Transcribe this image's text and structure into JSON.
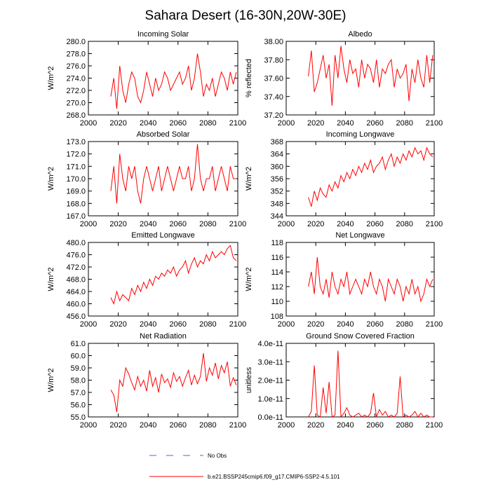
{
  "title": "Sahara Desert (16-30N,20W-30E)",
  "legend": [
    {
      "name": "No Obs",
      "color": "#6a5acd",
      "dash": true
    },
    {
      "name": "b.e21.BSSP245cmip6.f09_g17.CMIP6-SSP2-4.5.101",
      "color": "#ff0000",
      "dash": false
    }
  ],
  "chart_data": [
    {
      "type": "line",
      "title": "Incoming Solar",
      "ylabel": "W/m^2",
      "color": "#ff0000",
      "xlim": [
        2000,
        2100
      ],
      "xticks": [
        2000,
        2020,
        2040,
        2060,
        2080,
        2100
      ],
      "ylim": [
        268,
        280
      ],
      "yticks": [
        {
          "value": 268,
          "label": "268.0"
        },
        {
          "value": 270,
          "label": "270.0"
        },
        {
          "value": 272,
          "label": "272.0"
        },
        {
          "value": 274,
          "label": "274.0"
        },
        {
          "value": 276,
          "label": "276.0"
        },
        {
          "value": 278,
          "label": "278.0"
        },
        {
          "value": 280,
          "label": "280.0"
        }
      ],
      "x": [
        2015,
        2017,
        2019,
        2021,
        2023,
        2025,
        2027,
        2029,
        2031,
        2033,
        2035,
        2037,
        2039,
        2041,
        2043,
        2045,
        2047,
        2049,
        2051,
        2053,
        2055,
        2057,
        2059,
        2061,
        2063,
        2065,
        2067,
        2069,
        2071,
        2073,
        2075,
        2077,
        2079,
        2081,
        2083,
        2085,
        2087,
        2089,
        2091,
        2093,
        2095,
        2097,
        2099
      ],
      "values": [
        271,
        274,
        269,
        276,
        272,
        270,
        273,
        275,
        274,
        271,
        270,
        272,
        275,
        273,
        271,
        274,
        272,
        273,
        275,
        274,
        272,
        273,
        274,
        275,
        273,
        274,
        276,
        272,
        274,
        278,
        275,
        271,
        273,
        272,
        274,
        271,
        273,
        275,
        274,
        272,
        275,
        273,
        275
      ]
    },
    {
      "type": "line",
      "title": "Albedo",
      "ylabel": "% reflected",
      "color": "#ff0000",
      "xlim": [
        2000,
        2100
      ],
      "xticks": [
        2000,
        2020,
        2040,
        2060,
        2080,
        2100
      ],
      "ylim": [
        37.2,
        38.0
      ],
      "yticks": [
        {
          "value": 37.2,
          "label": "37.20"
        },
        {
          "value": 37.4,
          "label": "37.40"
        },
        {
          "value": 37.6,
          "label": "37.60"
        },
        {
          "value": 37.8,
          "label": "37.80"
        },
        {
          "value": 38.0,
          "label": "38.00"
        }
      ],
      "x": [
        2015,
        2017,
        2019,
        2021,
        2023,
        2025,
        2027,
        2029,
        2031,
        2033,
        2035,
        2037,
        2039,
        2041,
        2043,
        2045,
        2047,
        2049,
        2051,
        2053,
        2055,
        2057,
        2059,
        2061,
        2063,
        2065,
        2067,
        2069,
        2071,
        2073,
        2075,
        2077,
        2079,
        2081,
        2083,
        2085,
        2087,
        2089,
        2091,
        2093,
        2095,
        2097,
        2099
      ],
      "values": [
        37.62,
        37.9,
        37.45,
        37.55,
        37.7,
        37.85,
        37.6,
        37.75,
        37.3,
        37.85,
        37.6,
        37.95,
        37.7,
        37.55,
        37.8,
        37.65,
        37.7,
        37.5,
        37.8,
        37.6,
        37.75,
        37.7,
        37.55,
        37.8,
        37.5,
        37.7,
        37.65,
        37.75,
        37.8,
        37.5,
        37.7,
        37.6,
        37.65,
        37.75,
        37.35,
        37.7,
        37.55,
        37.8,
        37.6,
        37.5,
        37.85,
        37.55,
        37.85
      ]
    },
    {
      "type": "line",
      "title": "Absorbed Solar",
      "ylabel": "W/m^2",
      "color": "#ff0000",
      "xlim": [
        2000,
        2100
      ],
      "xticks": [
        2000,
        2020,
        2040,
        2060,
        2080,
        2100
      ],
      "ylim": [
        167,
        173
      ],
      "yticks": [
        {
          "value": 167,
          "label": "167.0"
        },
        {
          "value": 168,
          "label": "168.0"
        },
        {
          "value": 169,
          "label": "169.0"
        },
        {
          "value": 170,
          "label": "170.0"
        },
        {
          "value": 171,
          "label": "171.0"
        },
        {
          "value": 172,
          "label": "172.0"
        },
        {
          "value": 173,
          "label": "173.0"
        }
      ],
      "x": [
        2015,
        2017,
        2019,
        2021,
        2023,
        2025,
        2027,
        2029,
        2031,
        2033,
        2035,
        2037,
        2039,
        2041,
        2043,
        2045,
        2047,
        2049,
        2051,
        2053,
        2055,
        2057,
        2059,
        2061,
        2063,
        2065,
        2067,
        2069,
        2071,
        2073,
        2075,
        2077,
        2079,
        2081,
        2083,
        2085,
        2087,
        2089,
        2091,
        2093,
        2095,
        2097,
        2099
      ],
      "values": [
        169,
        171,
        168,
        172,
        170,
        169,
        171,
        170,
        171,
        169,
        168,
        170,
        171,
        170,
        169,
        170,
        171,
        169,
        170,
        171,
        170,
        169,
        170,
        171,
        170,
        170,
        171,
        169,
        170,
        172.8,
        170,
        169,
        170,
        170,
        171,
        169,
        170,
        171,
        170,
        169,
        171,
        170,
        170
      ]
    },
    {
      "type": "line",
      "title": "Incoming Longwave",
      "ylabel": "W/m^2",
      "color": "#ff0000",
      "xlim": [
        2000,
        2100
      ],
      "xticks": [
        2000,
        2020,
        2040,
        2060,
        2080,
        2100
      ],
      "ylim": [
        344,
        368
      ],
      "yticks": [
        344,
        348,
        352,
        356,
        360,
        364,
        368
      ],
      "x": [
        2015,
        2017,
        2019,
        2021,
        2023,
        2025,
        2027,
        2029,
        2031,
        2033,
        2035,
        2037,
        2039,
        2041,
        2043,
        2045,
        2047,
        2049,
        2051,
        2053,
        2055,
        2057,
        2059,
        2061,
        2063,
        2065,
        2067,
        2069,
        2071,
        2073,
        2075,
        2077,
        2079,
        2081,
        2083,
        2085,
        2087,
        2089,
        2091,
        2093,
        2095,
        2097,
        2099
      ],
      "values": [
        350,
        347,
        352,
        349,
        353,
        351,
        350,
        354,
        352,
        355,
        353,
        357,
        355,
        358,
        356,
        359,
        357,
        360,
        358,
        361,
        359,
        362,
        358,
        360,
        361,
        363,
        359,
        362,
        364,
        360,
        363,
        361,
        364,
        362,
        365,
        363,
        366,
        364,
        365,
        362,
        366,
        364,
        363
      ]
    },
    {
      "type": "line",
      "title": "Emitted Longwave",
      "ylabel": "W/m^2",
      "color": "#ff0000",
      "xlim": [
        2000,
        2100
      ],
      "xticks": [
        2000,
        2020,
        2040,
        2060,
        2080,
        2100
      ],
      "ylim": [
        456,
        480
      ],
      "yticks": [
        {
          "value": 456,
          "label": "456.0"
        },
        {
          "value": 460,
          "label": "460.0"
        },
        {
          "value": 464,
          "label": "464.0"
        },
        {
          "value": 468,
          "label": "468.0"
        },
        {
          "value": 472,
          "label": "472.0"
        },
        {
          "value": 476,
          "label": "476.0"
        },
        {
          "value": 480,
          "label": "480.0"
        }
      ],
      "x": [
        2015,
        2017,
        2019,
        2021,
        2023,
        2025,
        2027,
        2029,
        2031,
        2033,
        2035,
        2037,
        2039,
        2041,
        2043,
        2045,
        2047,
        2049,
        2051,
        2053,
        2055,
        2057,
        2059,
        2061,
        2063,
        2065,
        2067,
        2069,
        2071,
        2073,
        2075,
        2077,
        2079,
        2081,
        2083,
        2085,
        2087,
        2089,
        2091,
        2093,
        2095,
        2097,
        2099
      ],
      "values": [
        462,
        460,
        464,
        461,
        463,
        462,
        461,
        465,
        463,
        466,
        464,
        467,
        465,
        468,
        466,
        469,
        468,
        470,
        469,
        471,
        470,
        472,
        469,
        471,
        472,
        474,
        470,
        473,
        475,
        472,
        474,
        473,
        476,
        474,
        477,
        475,
        476,
        477,
        476,
        478,
        479,
        475,
        474
      ]
    },
    {
      "type": "line",
      "title": "Net Longwave",
      "ylabel": "W/m^2",
      "color": "#ff0000",
      "xlim": [
        2000,
        2100
      ],
      "xticks": [
        2000,
        2020,
        2040,
        2060,
        2080,
        2100
      ],
      "ylim": [
        108,
        118
      ],
      "yticks": [
        108,
        110,
        112,
        114,
        116,
        118
      ],
      "x": [
        2015,
        2017,
        2019,
        2021,
        2023,
        2025,
        2027,
        2029,
        2031,
        2033,
        2035,
        2037,
        2039,
        2041,
        2043,
        2045,
        2047,
        2049,
        2051,
        2053,
        2055,
        2057,
        2059,
        2061,
        2063,
        2065,
        2067,
        2069,
        2071,
        2073,
        2075,
        2077,
        2079,
        2081,
        2083,
        2085,
        2087,
        2089,
        2091,
        2093,
        2095,
        2097,
        2099
      ],
      "values": [
        112,
        114,
        111,
        116,
        112,
        111,
        113,
        110.5,
        114,
        112,
        111,
        113,
        112,
        114,
        111,
        112,
        113,
        112,
        111,
        113,
        112,
        114,
        112,
        111,
        113,
        112,
        110,
        113,
        112,
        111,
        113,
        112,
        110,
        112,
        111,
        113,
        111,
        112,
        110,
        111,
        113,
        112,
        113
      ]
    },
    {
      "type": "line",
      "title": "Net Radiation",
      "ylabel": "W/m^2",
      "color": "#ff0000",
      "xlim": [
        2000,
        2100
      ],
      "xticks": [
        2000,
        2020,
        2040,
        2060,
        2080,
        2100
      ],
      "ylim": [
        55,
        61
      ],
      "yticks": [
        {
          "value": 55,
          "label": "55.0"
        },
        {
          "value": 56,
          "label": "56.0"
        },
        {
          "value": 57,
          "label": "57.0"
        },
        {
          "value": 58,
          "label": "58.0"
        },
        {
          "value": 59,
          "label": "59.0"
        },
        {
          "value": 60,
          "label": "60.0"
        },
        {
          "value": 61,
          "label": "61.0"
        }
      ],
      "x": [
        2015,
        2017,
        2019,
        2021,
        2023,
        2025,
        2027,
        2029,
        2031,
        2033,
        2035,
        2037,
        2039,
        2041,
        2043,
        2045,
        2047,
        2049,
        2051,
        2053,
        2055,
        2057,
        2059,
        2061,
        2063,
        2065,
        2067,
        2069,
        2071,
        2073,
        2075,
        2077,
        2079,
        2081,
        2083,
        2085,
        2087,
        2089,
        2091,
        2093,
        2095,
        2097,
        2099
      ],
      "values": [
        57.2,
        56.8,
        55.4,
        58,
        57.5,
        59,
        58.5,
        57.8,
        57.2,
        58.3,
        57.5,
        58,
        57.1,
        58.8,
        57.5,
        58.2,
        57,
        58.5,
        57.8,
        58.1,
        57.4,
        58.6,
        57.9,
        58.3,
        57.5,
        58.2,
        58.8,
        57.6,
        58.4,
        57.7,
        58.3,
        60.2,
        57.9,
        59,
        58.4,
        59.4,
        58.1,
        59.2,
        58.6,
        59.5,
        57.5,
        58.2,
        57.6
      ]
    },
    {
      "type": "line",
      "title": "Ground Snow Covered Fraction",
      "ylabel": "unitless",
      "color": "#ff0000",
      "xlim": [
        2000,
        2100
      ],
      "xticks": [
        2000,
        2020,
        2040,
        2060,
        2080,
        2100
      ],
      "ylim": [
        0,
        4e-11
      ],
      "yticks": [
        {
          "value": 0,
          "label": "0.0e-11"
        },
        {
          "value": 1e-11,
          "label": "1.0e-11"
        },
        {
          "value": 2e-11,
          "label": "2.0e-11"
        },
        {
          "value": 3e-11,
          "label": "3.0e-11"
        },
        {
          "value": 4e-11,
          "label": "4.0e-11"
        }
      ],
      "x": [
        2015,
        2017,
        2019,
        2021,
        2023,
        2025,
        2027,
        2029,
        2031,
        2033,
        2035,
        2037,
        2039,
        2041,
        2043,
        2045,
        2047,
        2049,
        2051,
        2053,
        2055,
        2057,
        2059,
        2061,
        2063,
        2065,
        2067,
        2069,
        2071,
        2073,
        2075,
        2077,
        2079,
        2081,
        2083,
        2085,
        2087,
        2089,
        2091,
        2093,
        2095,
        2097,
        2099
      ],
      "values": [
        0,
        3e-12,
        2.8e-11,
        1e-12,
        0,
        1.6e-11,
        2e-12,
        1.9e-11,
        0,
        1e-12,
        3.6e-11,
        0,
        2e-12,
        5e-12,
        1e-12,
        0,
        1e-12,
        2e-12,
        0,
        1e-12,
        0,
        2e-12,
        1.3e-11,
        0,
        4e-12,
        1e-12,
        3e-12,
        0,
        1e-12,
        0,
        2e-12,
        2.2e-11,
        0,
        1e-12,
        0,
        1e-12,
        3e-12,
        0,
        2e-12,
        0,
        1e-12,
        0,
        0
      ]
    }
  ]
}
